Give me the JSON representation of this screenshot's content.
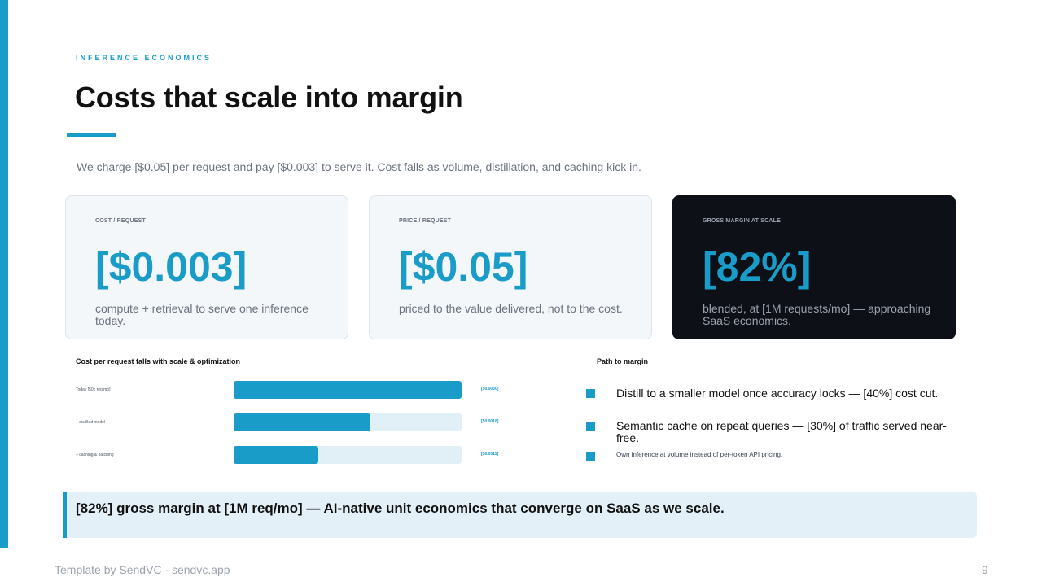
{
  "header": {
    "eyebrow": "INFERENCE ECONOMICS",
    "title": "Costs that scale into margin",
    "subtitle": "We charge [$0.05] per request and pay [$0.003] to serve it. Cost falls as volume, distillation, and caching kick in."
  },
  "cards": [
    {
      "label": "COST / REQUEST",
      "value": "[$0.003]",
      "desc": "compute + retrieval to serve one inference today."
    },
    {
      "label": "PRICE / REQUEST",
      "value": "[$0.05]",
      "desc": "priced to the value delivered, not to the cost."
    },
    {
      "label": "GROSS MARGIN AT SCALE",
      "value": "[82%]",
      "desc": "blended, at [1M requests/mo] — approaching SaaS economics."
    }
  ],
  "cost_chart": {
    "title": "Cost per request falls with scale & optimization",
    "bars": [
      {
        "label": "Today [50k req/mo]",
        "value_label": "[$0.0030]",
        "fraction": 1.0
      },
      {
        "label": "+ distilled model",
        "value_label": "[$0.0018]",
        "fraction": 0.6
      },
      {
        "label": "+ caching & batching",
        "value_label": "[$0.0011]",
        "fraction": 0.37
      }
    ]
  },
  "path_to_margin": {
    "title": "Path to margin",
    "items": [
      "Distill to a smaller model once accuracy locks — [40%] cost cut.",
      "Semantic cache on repeat queries — [30%] of traffic served near-free.",
      "Own inference at volume instead of per-token API pricing."
    ]
  },
  "callout": {
    "text": "[82%] gross margin at [1M req/mo] — AI-native unit economics that converge on SaaS as we scale."
  },
  "footer": {
    "credit": "Template by SendVC · sendvc.app",
    "page_number": "9"
  },
  "colors": {
    "accent": "#1a9cc8",
    "dark_card": "#0d1117",
    "callout_bg": "#e3f0f7"
  }
}
